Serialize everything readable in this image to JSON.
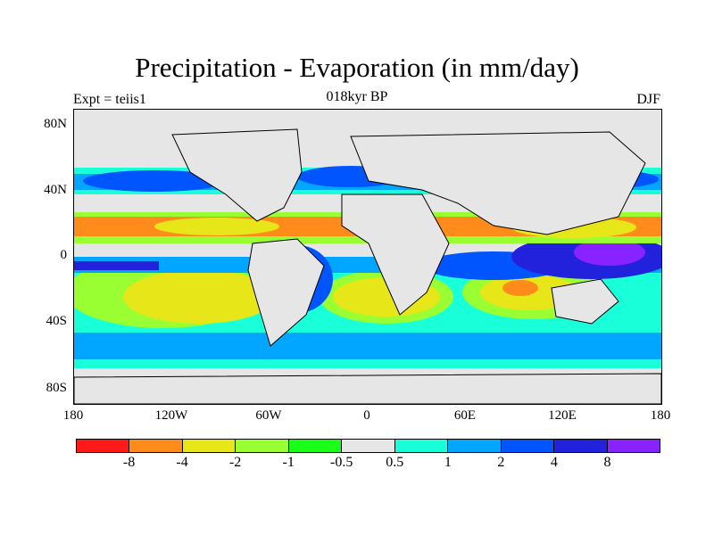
{
  "header": {
    "title": "Precipitation - Evaporation (in mm/day)",
    "expt": "Expt = teiis1",
    "period": "018kyr BP",
    "season": "DJF"
  },
  "axes": {
    "y_ticks": [
      "80N",
      "40N",
      "0",
      "40S",
      "80S"
    ],
    "x_ticks": [
      "180",
      "120W",
      "60W",
      "0",
      "60E",
      "120E",
      "180"
    ]
  },
  "colorbar": {
    "colors": [
      "#ff1a1a",
      "#ff8c1a",
      "#e6e619",
      "#99ff33",
      "#19ff19",
      "#e6e6e6",
      "#19ffd9",
      "#00a6ff",
      "#0055ff",
      "#2222dd",
      "#8822ff"
    ],
    "labels": [
      "-8",
      "-4",
      "-2",
      "-1",
      "-0.5",
      "0.5",
      "1",
      "2",
      "4",
      "8"
    ]
  }
}
